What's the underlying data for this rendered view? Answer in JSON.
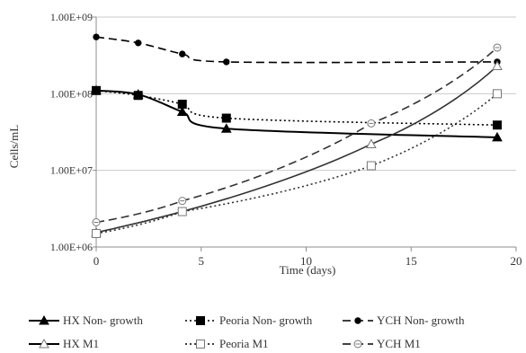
{
  "chart_data": {
    "type": "line",
    "title": "",
    "xlabel": "Time (days)",
    "ylabel": "Cells/mL",
    "xlim": [
      0,
      20
    ],
    "ylim": [
      1000000,
      1000000000
    ],
    "yscale": "log",
    "grid": "horizontal",
    "legend_placement": "bottom",
    "x_ticks": [
      0,
      5,
      10,
      15,
      20
    ],
    "x_tick_labels": [
      "0",
      "5",
      "10",
      "15",
      "20"
    ],
    "y_ticks": [
      1000000,
      10000000,
      100000000,
      1000000000
    ],
    "y_tick_labels": [
      "1.00E+06",
      "1.00E+07",
      "1.00E+08",
      "1.00E+09"
    ],
    "series": [
      {
        "name": "HX Non- growth",
        "line": "solid",
        "marker": "triangle-filled",
        "color": "#000000",
        "x": [
          0,
          2,
          4.1,
          6.2,
          19.1
        ],
        "y": [
          110000000,
          98000000,
          58000000,
          35000000,
          27000000
        ]
      },
      {
        "name": "Peoria Non- growth",
        "line": "dotted",
        "marker": "square-filled",
        "color": "#000000",
        "x": [
          0,
          2,
          4.1,
          6.2,
          19.1
        ],
        "y": [
          110000000,
          95000000,
          73000000,
          48000000,
          39000000
        ]
      },
      {
        "name": "YCH Non- growth",
        "line": "dashed",
        "marker": "circle-filled",
        "color": "#000000",
        "x": [
          0,
          2,
          4.1,
          6.2,
          19.1
        ],
        "y": [
          550000000,
          460000000,
          330000000,
          260000000,
          260000000
        ]
      },
      {
        "name": "HX M1",
        "line": "solid",
        "marker": "triangle-open",
        "color": "#000000",
        "x": [
          0,
          13.1,
          19.1
        ],
        "y": [
          1550000,
          22000000,
          230000000
        ]
      },
      {
        "name": "Peoria M1",
        "line": "dotted",
        "marker": "square-open",
        "color": "#000000",
        "x": [
          0,
          4.1,
          13.1,
          19.1
        ],
        "y": [
          1500000,
          2900000,
          11500000,
          100000000
        ]
      },
      {
        "name": "YCH M1",
        "line": "dashed",
        "marker": "circle-open",
        "color": "#000000",
        "x": [
          0,
          4.1,
          13.1,
          19.1
        ],
        "y": [
          2100000,
          4000000,
          41000000,
          400000000
        ]
      }
    ]
  }
}
